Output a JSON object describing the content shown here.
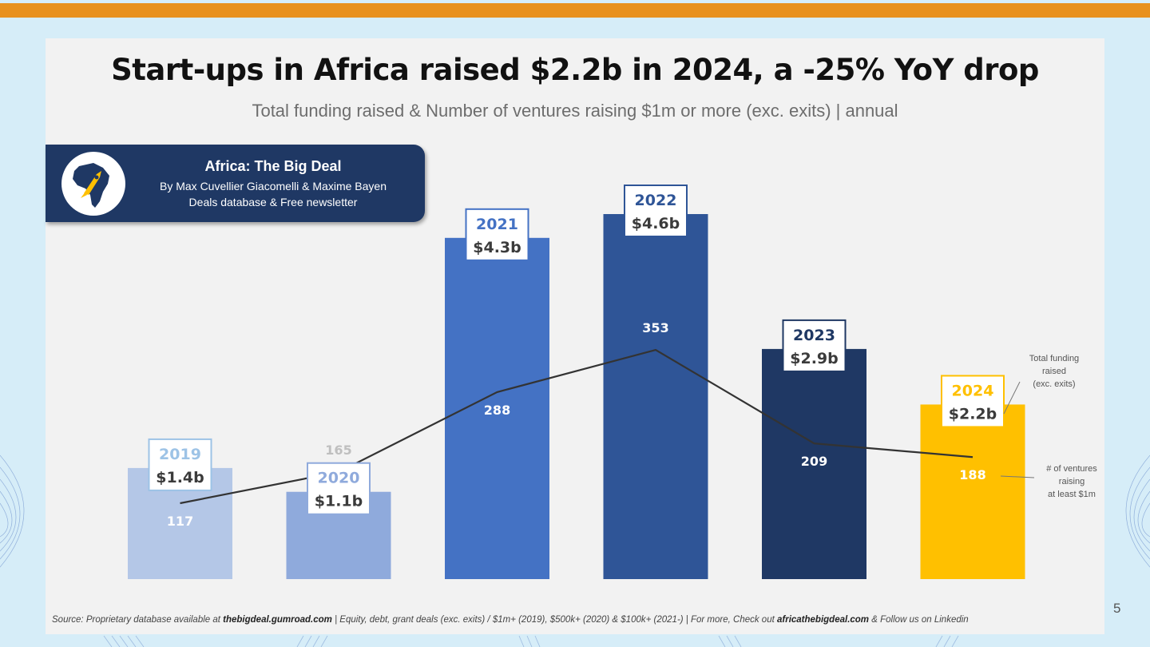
{
  "slide": {
    "title": "Start-ups in Africa raised $2.2b in 2024, a -25% YoY drop",
    "subtitle": "Total funding raised & Number of ventures raising $1m or more (exc. exits) | annual",
    "page_number": "5"
  },
  "brand": {
    "name": "Africa: The Big Deal",
    "byline": "By Max Cuvellier Giacomelli & Maxime Bayen",
    "tagline": "Deals database & Free newsletter",
    "icon": "africa-rocket-logo"
  },
  "source": {
    "prefix": "Source: Proprietary database available at ",
    "site": "thebigdeal.gumroad.com",
    "middle": " | Equity, debt, grant deals (exc. exits) / $1m+ (2019), $500k+ (2020) & $100k+ (2021-) | For more, Check out ",
    "site2": "africathebigdeal.com",
    "suffix": " & Follow us on Linkedin"
  },
  "chart_data": {
    "type": "bar",
    "title": "Start-ups in Africa raised $2.2b in 2024, a -25% YoY drop",
    "categories": [
      "2019",
      "2020",
      "2021",
      "2022",
      "2023",
      "2024"
    ],
    "series": [
      {
        "type": "bar",
        "values": [
          1.4,
          1.1,
          4.3,
          4.6,
          2.9,
          2.2
        ],
        "labels": [
          "$1.4b",
          "$1.1b",
          "$4.3b",
          "$4.6b",
          "$2.9b",
          "$2.2b"
        ],
        "colors": [
          "#b4c7e7",
          "#8faadc",
          "#4472c4",
          "#2f5597",
          "#1f3864",
          "#ffc000"
        ]
      },
      {
        "type": "line",
        "values": [
          117,
          165,
          288,
          353,
          209,
          188
        ],
        "color": "#333333"
      }
    ],
    "year_label_colors": [
      "#9dc3e6",
      "#8faadc",
      "#4472c4",
      "#2f5597",
      "#1f3864",
      "#ffc000"
    ],
    "count_label_colors": [
      "#ffffff",
      "#bfbfbf",
      "#ffffff",
      "#ffffff",
      "#ffffff",
      "#ffffff"
    ],
    "annotations": [
      {
        "lines": [
          "Total funding",
          "raised",
          "(exc. exits)"
        ],
        "target": "bar"
      },
      {
        "lines": [
          "# of ventures",
          "raising",
          "at least $1m"
        ],
        "target": "line"
      }
    ],
    "legend": "none",
    "grid": false
  }
}
